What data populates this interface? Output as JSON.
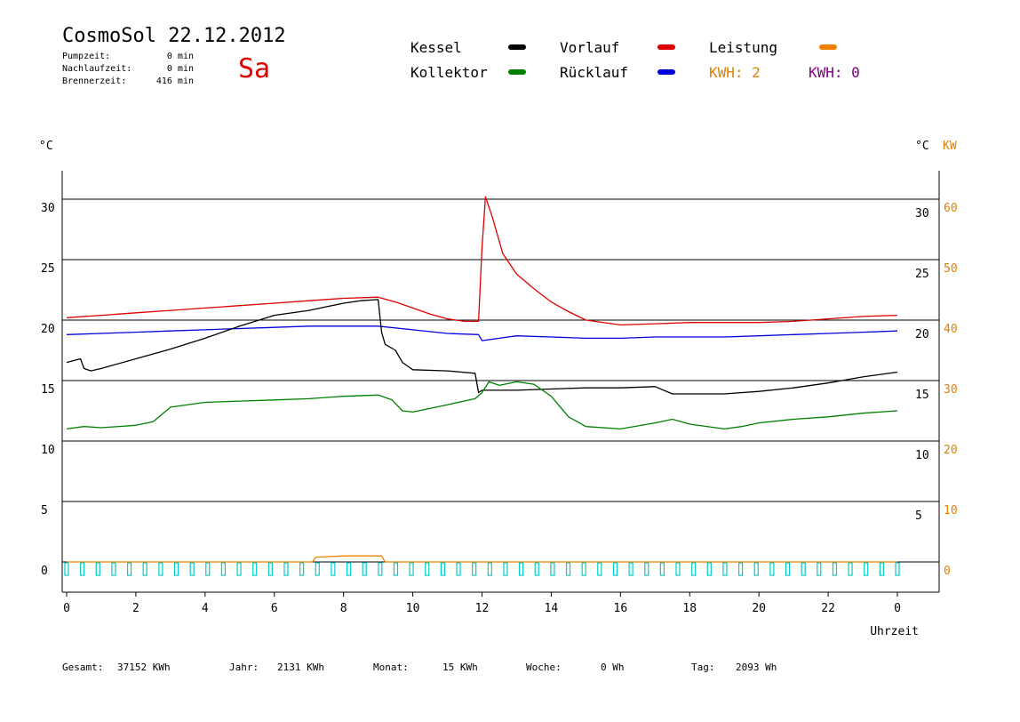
{
  "header": {
    "title": "CosmoSol 22.12.2012",
    "day": "Sa",
    "pumpzeit_label": "Pumpzeit:",
    "pumpzeit_value": "0 min",
    "nachlaufzeit_label": "Nachlaufzeit:",
    "nachlaufzeit_value": "0 min",
    "brennerzeit_label": "Brennerzeit:",
    "brennerzeit_value": "416 min"
  },
  "legend": {
    "kessel": {
      "label": "Kessel",
      "color": "#000000"
    },
    "vorlauf": {
      "label": "Vorlauf",
      "color": "#dd0000"
    },
    "leistung": {
      "label": "Leistung",
      "color": "#f08000"
    },
    "kollektor": {
      "label": "Kollektor",
      "color": "#008000"
    },
    "ruecklauf": {
      "label": "Rücklauf",
      "color": "#0000dd"
    },
    "kwh_orange_label": "KWH:",
    "kwh_orange_value": "2",
    "kwh_orange_color": "#e08000",
    "kwh_purple_label": "KWH:",
    "kwh_purple_value": "0",
    "kwh_purple_color": "#800080"
  },
  "footer": {
    "gesamt_label": "Gesamt:",
    "gesamt_value": "37152 KWh",
    "jahr_label": "Jahr:",
    "jahr_value": "2131 KWh",
    "monat_label": "Monat:",
    "monat_value": "15 KWh",
    "woche_label": "Woche:",
    "woche_value": "0 Wh",
    "tag_label": "Tag:",
    "tag_value": "2093 Wh"
  },
  "chart_data": {
    "type": "line",
    "title": "",
    "xlabel": "Uhrzeit",
    "ylabel_left": "°C",
    "ylabel_right_temp": "°C",
    "ylabel_right_power": "KW",
    "xlim": [
      0,
      24
    ],
    "ylim": [
      -2.5,
      32.5
    ],
    "x_tick_labels": [
      "0",
      "2",
      "4",
      "6",
      "8",
      "10",
      "12",
      "14",
      "16",
      "18",
      "20",
      "22",
      "0"
    ],
    "y_left_ticks": [
      0,
      5,
      10,
      15,
      20,
      25,
      30
    ],
    "y_right_temp_ticks": [
      5,
      10,
      15,
      20,
      25,
      30
    ],
    "y_right_power_ticks": [
      0,
      10,
      20,
      30,
      40,
      50,
      60
    ],
    "grid": true,
    "series": [
      {
        "name": "Vorlauf",
        "color": "#dd0000",
        "x": [
          0,
          1,
          2,
          3,
          4,
          5,
          6,
          7,
          8,
          9,
          9.5,
          10,
          10.5,
          11,
          11.5,
          11.9,
          12.0,
          12.1,
          12.3,
          12.6,
          13,
          13.5,
          14,
          14.5,
          15,
          16,
          17,
          18,
          19,
          20,
          21,
          22,
          23,
          24
        ],
        "y": [
          20.2,
          20.4,
          20.6,
          20.8,
          21.0,
          21.2,
          21.4,
          21.6,
          21.8,
          21.9,
          21.5,
          21.0,
          20.5,
          20.1,
          19.9,
          19.9,
          26.0,
          30.2,
          28.5,
          25.5,
          23.8,
          22.6,
          21.5,
          20.7,
          20.0,
          19.6,
          19.7,
          19.8,
          19.8,
          19.8,
          19.9,
          20.1,
          20.3,
          20.4
        ]
      },
      {
        "name": "Rücklauf",
        "color": "#0000dd",
        "x": [
          0,
          1,
          2,
          3,
          4,
          5,
          6,
          7,
          8,
          9,
          10,
          11,
          11.9,
          12.0,
          12.5,
          13,
          14,
          15,
          16,
          17,
          18,
          19,
          20,
          21,
          22,
          23,
          24
        ],
        "y": [
          18.8,
          18.9,
          19.0,
          19.1,
          19.2,
          19.3,
          19.4,
          19.5,
          19.5,
          19.5,
          19.2,
          18.9,
          18.8,
          18.3,
          18.5,
          18.7,
          18.6,
          18.5,
          18.5,
          18.6,
          18.6,
          18.6,
          18.7,
          18.8,
          18.9,
          19.0,
          19.1
        ]
      },
      {
        "name": "Kessel",
        "color": "#000000",
        "x": [
          0,
          0.4,
          0.5,
          0.7,
          1,
          2,
          3,
          4,
          5,
          6,
          7,
          8,
          8.5,
          9.0,
          9.1,
          9.2,
          9.5,
          9.7,
          10,
          11,
          11.8,
          11.9,
          12.0,
          12.5,
          13,
          14,
          15,
          16,
          17,
          17.5,
          18,
          19,
          20,
          21,
          22,
          23,
          24
        ],
        "y": [
          16.5,
          16.8,
          16.0,
          15.8,
          16.0,
          16.8,
          17.6,
          18.5,
          19.5,
          20.4,
          20.8,
          21.4,
          21.6,
          21.7,
          19.0,
          18.0,
          17.5,
          16.5,
          15.9,
          15.8,
          15.6,
          14.0,
          14.2,
          14.2,
          14.2,
          14.3,
          14.4,
          14.4,
          14.5,
          13.9,
          13.9,
          13.9,
          14.1,
          14.4,
          14.8,
          15.3,
          15.7
        ]
      },
      {
        "name": "Kollektor",
        "color": "#008000",
        "x": [
          0,
          0.5,
          1,
          2,
          2.5,
          3,
          4,
          5,
          6,
          7,
          8,
          9,
          9.4,
          9.7,
          10,
          11,
          11.8,
          12.0,
          12.2,
          12.5,
          13,
          13.5,
          14,
          14.5,
          15,
          16,
          17,
          17.5,
          18,
          19,
          19.5,
          20,
          21,
          22,
          23,
          24
        ],
        "y": [
          11.0,
          11.2,
          11.1,
          11.3,
          11.6,
          12.8,
          13.2,
          13.3,
          13.4,
          13.5,
          13.7,
          13.8,
          13.4,
          12.5,
          12.4,
          13.0,
          13.5,
          14.0,
          14.9,
          14.6,
          14.9,
          14.7,
          13.7,
          12.0,
          11.2,
          11.0,
          11.5,
          11.8,
          11.4,
          11.0,
          11.2,
          11.5,
          11.8,
          12.0,
          12.3,
          12.5
        ]
      },
      {
        "name": "Leistung",
        "color": "#f08000",
        "unit": "KW",
        "x": [
          0,
          7.1,
          7.2,
          8.0,
          9.1,
          9.2,
          24
        ],
        "y": [
          0,
          0,
          0.8,
          1.0,
          1.0,
          0,
          0
        ]
      }
    ],
    "pump_indicator": {
      "color": "#00cccc",
      "x_start": 0,
      "x_end": 24
    }
  }
}
